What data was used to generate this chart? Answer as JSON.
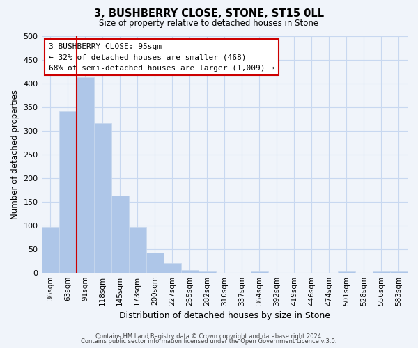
{
  "title": "3, BUSHBERRY CLOSE, STONE, ST15 0LL",
  "subtitle": "Size of property relative to detached houses in Stone",
  "xlabel": "Distribution of detached houses by size in Stone",
  "ylabel": "Number of detached properties",
  "bar_color": "#aec6e8",
  "bar_edge_color": "#c8d8ee",
  "grid_color": "#c8d8f0",
  "background_color": "#f0f4fa",
  "bin_labels": [
    "36sqm",
    "63sqm",
    "91sqm",
    "118sqm",
    "145sqm",
    "173sqm",
    "200sqm",
    "227sqm",
    "255sqm",
    "282sqm",
    "310sqm",
    "337sqm",
    "364sqm",
    "392sqm",
    "419sqm",
    "446sqm",
    "474sqm",
    "501sqm",
    "528sqm",
    "556sqm",
    "583sqm"
  ],
  "bar_heights": [
    97,
    340,
    413,
    315,
    163,
    96,
    42,
    20,
    5,
    2,
    0,
    0,
    2,
    0,
    0,
    0,
    0,
    2,
    0,
    2,
    2
  ],
  "ylim": [
    0,
    500
  ],
  "yticks": [
    0,
    50,
    100,
    150,
    200,
    250,
    300,
    350,
    400,
    450,
    500
  ],
  "annotation_title": "3 BUSHBERRY CLOSE: 95sqm",
  "annotation_line1": "← 32% of detached houses are smaller (468)",
  "annotation_line2": "68% of semi-detached houses are larger (1,009) →",
  "annotation_box_color": "#ffffff",
  "annotation_box_edge": "#cc0000",
  "red_line_color": "#cc0000",
  "footer1": "Contains HM Land Registry data © Crown copyright and database right 2024.",
  "footer2": "Contains public sector information licensed under the Open Government Licence v.3.0."
}
